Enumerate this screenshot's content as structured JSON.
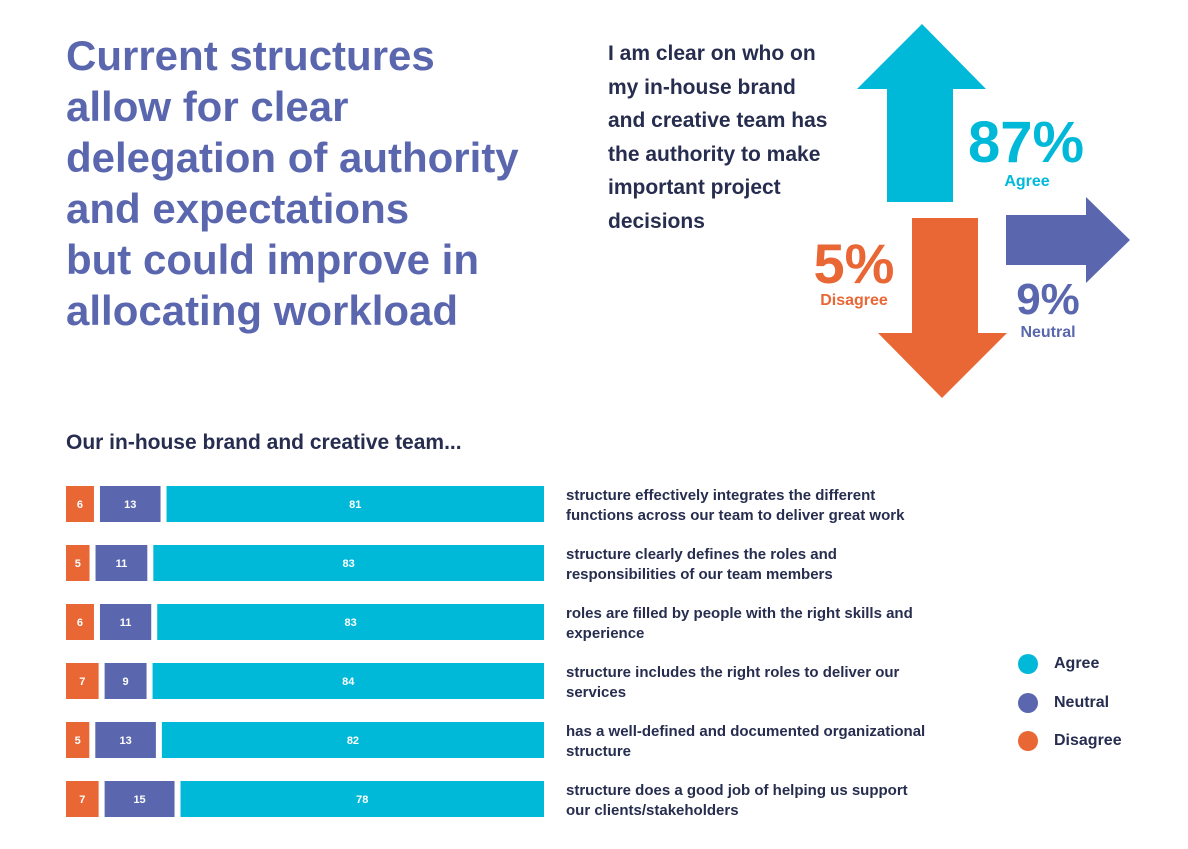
{
  "headline": [
    "Current structures",
    "allow for clear",
    "delegation of authority",
    "and expectations",
    "but could improve in",
    "allocating workload"
  ],
  "statement": [
    "I am clear on who on",
    "my in-house brand",
    "and creative team has",
    "the authority to make",
    "important project",
    "decisions"
  ],
  "summary": {
    "agree": {
      "value": "87%",
      "label": "Agree"
    },
    "disagree": {
      "value": "5%",
      "label": "Disagree"
    },
    "neutral": {
      "value": "9%",
      "label": "Neutral"
    }
  },
  "colors": {
    "agree": "#00b9d9",
    "neutral": "#5a67ae",
    "disagree": "#e96635",
    "text": "#272d4f"
  },
  "chart_data": {
    "type": "bar",
    "stacked": true,
    "orientation": "horizontal",
    "title": "Our in-house brand and creative team...",
    "categories": [
      [
        "structure effectively integrates the different",
        "functions across our team to deliver great work"
      ],
      [
        "structure clearly defines the roles and",
        "responsibilities of our team members"
      ],
      [
        "roles are filled by people with the right skills and",
        "experience"
      ],
      [
        "structure includes the right roles to deliver our",
        "services"
      ],
      [
        "has a well-defined and documented organizational",
        "structure"
      ],
      [
        "structure does a good job of helping us support",
        "our clients/stakeholders"
      ]
    ],
    "series": [
      {
        "name": "Disagree",
        "values": [
          6,
          5,
          6,
          7,
          5,
          7
        ]
      },
      {
        "name": "Neutral",
        "values": [
          13,
          11,
          11,
          9,
          13,
          15
        ]
      },
      {
        "name": "Agree",
        "values": [
          81,
          83,
          83,
          84,
          82,
          78
        ]
      }
    ],
    "legend": {
      "position": "right",
      "items": [
        "Agree",
        "Neutral",
        "Disagree"
      ]
    }
  }
}
